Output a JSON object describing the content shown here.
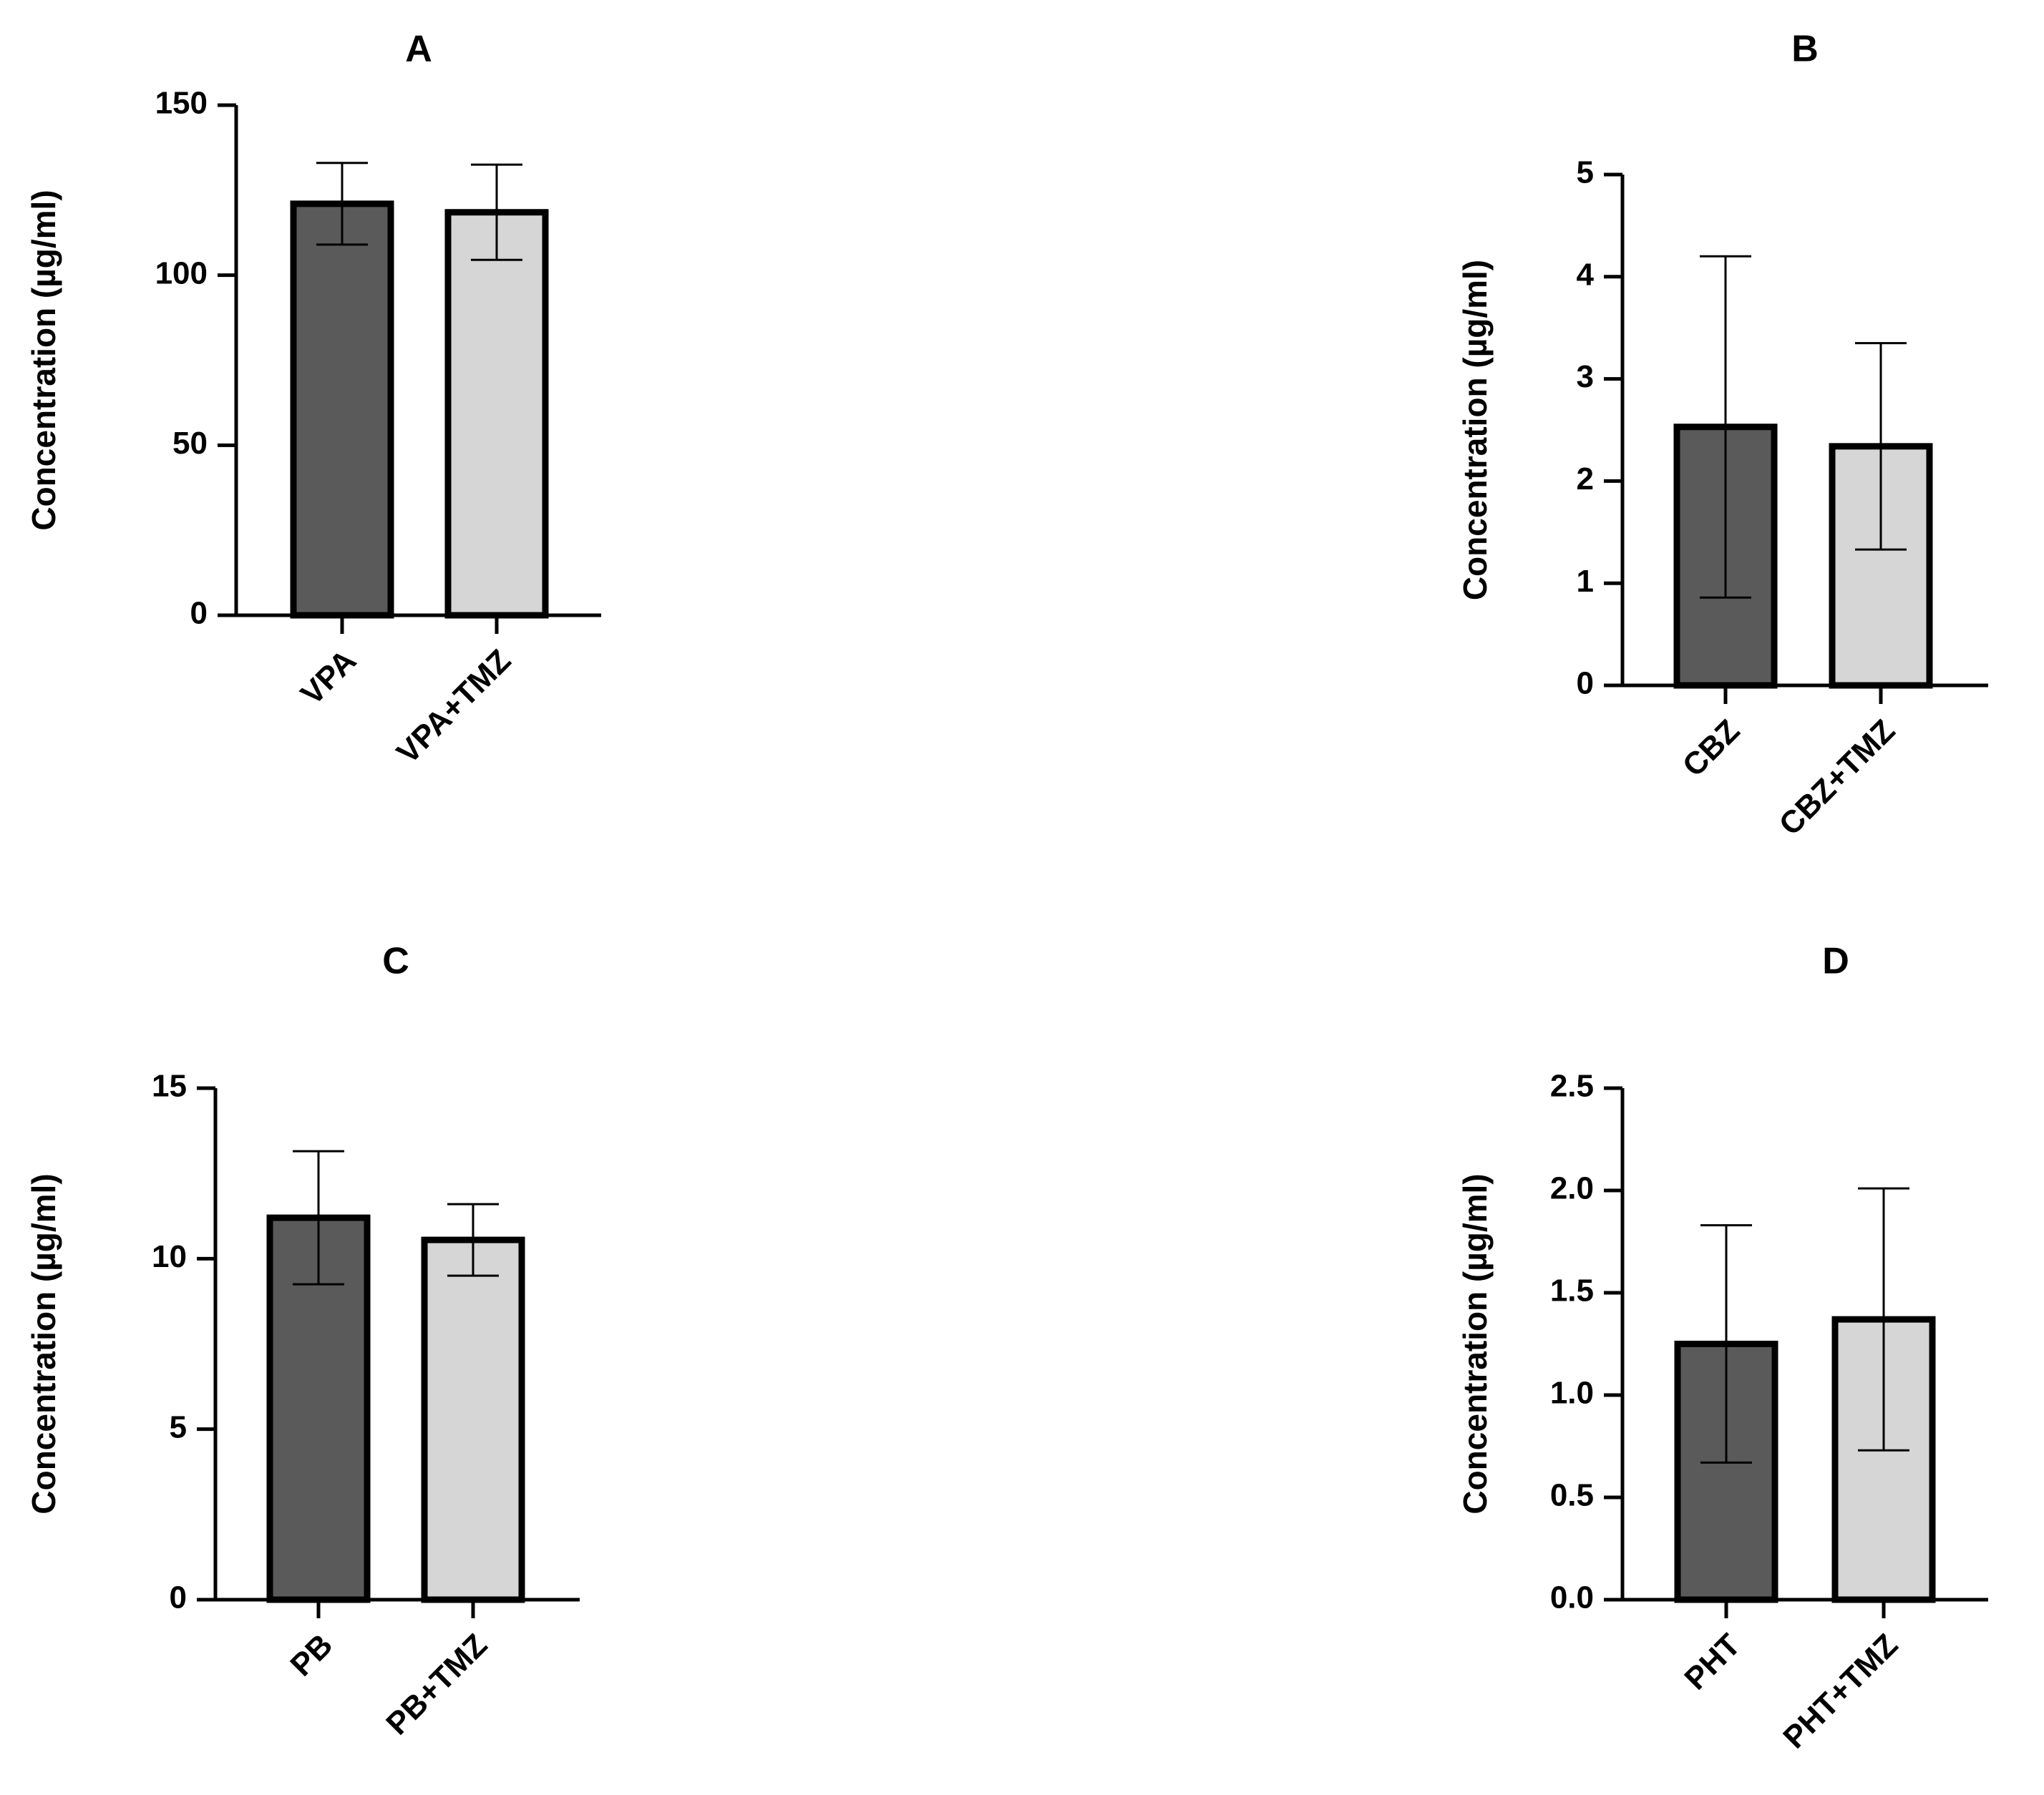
{
  "chart_data": [
    {
      "type": "bar",
      "title": "A",
      "ylabel": "Concentration (µg/ml)",
      "xlabel": "",
      "ylim": [
        0,
        150
      ],
      "yticks": [
        0,
        50,
        100,
        150
      ],
      "ytick_labels": [
        "0",
        "50",
        "100",
        "150"
      ],
      "categories": [
        "VPA",
        "VPA+TMZ"
      ],
      "values": [
        121,
        118.5
      ],
      "errors": [
        12,
        14
      ],
      "bar_colors": [
        "#5a5a5a",
        "#d6d6d6"
      ]
    },
    {
      "type": "bar",
      "title": "B",
      "ylabel": "Concentration (µg/ml)",
      "xlabel": "",
      "ylim": [
        0,
        5
      ],
      "yticks": [
        0,
        1,
        2,
        3,
        4,
        5
      ],
      "ytick_labels": [
        "0",
        "1",
        "2",
        "3",
        "4",
        "5"
      ],
      "categories": [
        "CBZ",
        "CBZ+TMZ"
      ],
      "values": [
        2.53,
        2.34
      ],
      "errors": [
        1.67,
        1.01
      ],
      "bar_colors": [
        "#5a5a5a",
        "#d6d6d6"
      ]
    },
    {
      "type": "bar",
      "title": "C",
      "ylabel": "Concentration (µg/ml)",
      "xlabel": "",
      "ylim": [
        0,
        15
      ],
      "yticks": [
        0,
        5,
        10,
        15
      ],
      "ytick_labels": [
        "0",
        "5",
        "10",
        "15"
      ],
      "categories": [
        "PB",
        "PB+TMZ"
      ],
      "values": [
        11.2,
        10.55
      ],
      "errors": [
        1.95,
        1.05
      ],
      "bar_colors": [
        "#5a5a5a",
        "#d6d6d6"
      ]
    },
    {
      "type": "bar",
      "title": "D",
      "ylabel": "Concentration (µg/ml)",
      "xlabel": "",
      "ylim": [
        0,
        2.5
      ],
      "yticks": [
        0,
        0.5,
        1.0,
        1.5,
        2.0,
        2.5
      ],
      "ytick_labels": [
        "0.0",
        "0.5",
        "1.0",
        "1.5",
        "2.0",
        "2.5"
      ],
      "categories": [
        "PHT",
        "PHT+TMZ"
      ],
      "values": [
        1.25,
        1.37
      ],
      "errors": [
        0.58,
        0.64
      ],
      "bar_colors": [
        "#5a5a5a",
        "#d6d6d6"
      ]
    }
  ]
}
